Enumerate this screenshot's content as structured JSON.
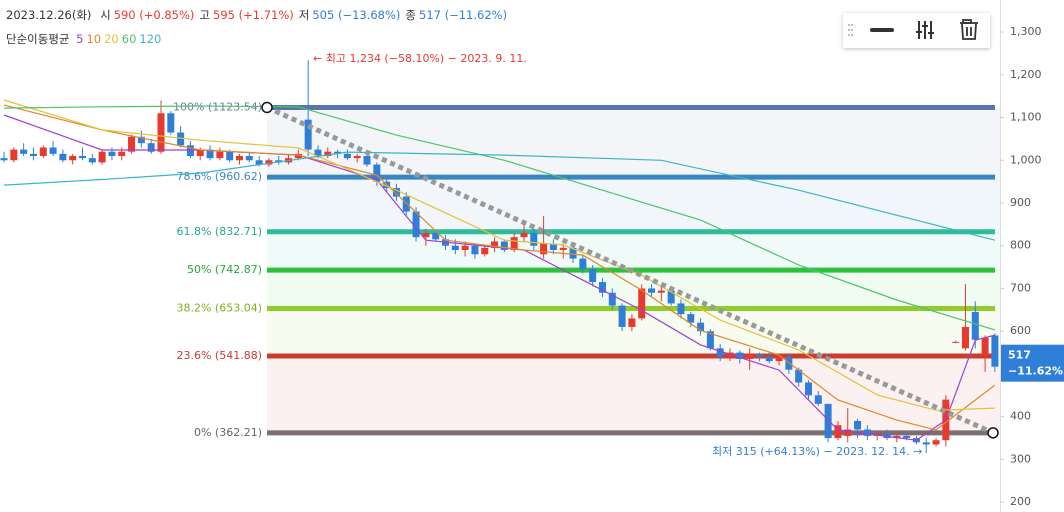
{
  "chart_data": {
    "type": "candlestick",
    "header": {
      "date": "2023.12.26(화)",
      "items": [
        {
          "label": "시",
          "value": "590 (+0.85%)",
          "color": "#e8392e"
        },
        {
          "label": "고",
          "value": "595 (+1.71%)",
          "color": "#e8392e"
        },
        {
          "label": "저",
          "value": "505 (−13.68%)",
          "color": "#2f7fd8"
        },
        {
          "label": "종",
          "value": "517 (−11.62%)",
          "color": "#2f7fd8"
        }
      ]
    },
    "legend_title": "단순이동평균",
    "up_color": "#e8392e",
    "down_color": "#2f7fd8",
    "xlim": [
      -0.41,
      101.52
    ],
    "ylim": [
      177,
      1375
    ],
    "yticks": [
      {
        "value": 1300,
        "label": "1,300"
      },
      {
        "value": 1200,
        "label": "1,200"
      },
      {
        "value": 1100,
        "label": "1,100"
      },
      {
        "value": 1000,
        "label": "1,000"
      },
      900,
      800,
      700,
      600,
      500,
      400,
      300,
      200
    ],
    "ohlc": [
      [
        1005,
        1020,
        995,
        1000
      ],
      [
        1000,
        1030,
        995,
        1025
      ],
      [
        1025,
        1040,
        1010,
        1015
      ],
      [
        1015,
        1030,
        1000,
        1010
      ],
      [
        1010,
        1035,
        1005,
        1030
      ],
      [
        1030,
        1045,
        1010,
        1015
      ],
      [
        1015,
        1025,
        995,
        1000
      ],
      [
        1000,
        1015,
        990,
        1010
      ],
      [
        1010,
        1030,
        1000,
        1005
      ],
      [
        1005,
        1015,
        990,
        995
      ],
      [
        995,
        1025,
        990,
        1020
      ],
      [
        1020,
        1030,
        1000,
        1010
      ],
      [
        1010,
        1030,
        1000,
        1020
      ],
      [
        1020,
        1060,
        1015,
        1055
      ],
      [
        1055,
        1070,
        1030,
        1040
      ],
      [
        1040,
        1050,
        1015,
        1020
      ],
      [
        1020,
        1140,
        1015,
        1110
      ],
      [
        1110,
        1115,
        1060,
        1065
      ],
      [
        1065,
        1080,
        1030,
        1035
      ],
      [
        1035,
        1045,
        1005,
        1010
      ],
      [
        1010,
        1030,
        1000,
        1025
      ],
      [
        1025,
        1035,
        1000,
        1005
      ],
      [
        1005,
        1030,
        1000,
        1020
      ],
      [
        1020,
        1025,
        995,
        1000
      ],
      [
        1000,
        1015,
        990,
        1010
      ],
      [
        1010,
        1020,
        995,
        1000
      ],
      [
        1000,
        1010,
        985,
        990
      ],
      [
        990,
        1005,
        985,
        1000
      ],
      [
        1000,
        1010,
        990,
        995
      ],
      [
        995,
        1015,
        990,
        1005
      ],
      [
        1005,
        1025,
        1000,
        1015
      ],
      [
        1095,
        1234,
        1010,
        1025
      ],
      [
        1025,
        1035,
        1005,
        1010
      ],
      [
        1010,
        1030,
        1005,
        1020
      ],
      [
        1020,
        1025,
        1005,
        1015
      ],
      [
        1015,
        1025,
        1000,
        1005
      ],
      [
        1005,
        1015,
        995,
        1010
      ],
      [
        1010,
        1015,
        985,
        990
      ],
      [
        990,
        995,
        940,
        950
      ],
      [
        950,
        960,
        925,
        935
      ],
      [
        935,
        945,
        905,
        915
      ],
      [
        915,
        925,
        870,
        880
      ],
      [
        880,
        890,
        810,
        820
      ],
      [
        820,
        840,
        800,
        830
      ],
      [
        830,
        835,
        810,
        815
      ],
      [
        815,
        825,
        790,
        800
      ],
      [
        800,
        815,
        780,
        790
      ],
      [
        790,
        810,
        775,
        800
      ],
      [
        800,
        805,
        770,
        780
      ],
      [
        780,
        800,
        775,
        795
      ],
      [
        795,
        820,
        785,
        810
      ],
      [
        810,
        815,
        785,
        790
      ],
      [
        790,
        830,
        785,
        820
      ],
      [
        820,
        850,
        810,
        830
      ],
      [
        830,
        840,
        790,
        800
      ],
      [
        780,
        870,
        770,
        805
      ],
      [
        805,
        815,
        780,
        790
      ],
      [
        790,
        805,
        770,
        795
      ],
      [
        795,
        800,
        760,
        770
      ],
      [
        770,
        780,
        735,
        745
      ],
      [
        745,
        755,
        705,
        715
      ],
      [
        715,
        725,
        680,
        690
      ],
      [
        690,
        700,
        650,
        660
      ],
      [
        660,
        665,
        600,
        610
      ],
      [
        610,
        640,
        600,
        630
      ],
      [
        630,
        710,
        625,
        700
      ],
      [
        700,
        710,
        680,
        690
      ],
      [
        690,
        705,
        670,
        695
      ],
      [
        695,
        700,
        660,
        665
      ],
      [
        665,
        675,
        630,
        640
      ],
      [
        640,
        645,
        610,
        620
      ],
      [
        620,
        630,
        590,
        600
      ],
      [
        600,
        605,
        555,
        560
      ],
      [
        560,
        570,
        530,
        540
      ],
      [
        540,
        560,
        530,
        550
      ],
      [
        550,
        555,
        525,
        535
      ],
      [
        535,
        560,
        510,
        545
      ],
      [
        545,
        550,
        530,
        540
      ],
      [
        540,
        550,
        525,
        530
      ],
      [
        530,
        545,
        520,
        540
      ],
      [
        540,
        545,
        500,
        510
      ],
      [
        510,
        515,
        470,
        480
      ],
      [
        480,
        485,
        440,
        450
      ],
      [
        450,
        460,
        425,
        430
      ],
      [
        430,
        430,
        340,
        350
      ],
      [
        350,
        390,
        345,
        380
      ],
      [
        355,
        420,
        340,
        370
      ],
      [
        390,
        395,
        350,
        370
      ],
      [
        370,
        380,
        345,
        355
      ],
      [
        355,
        365,
        345,
        360
      ],
      [
        360,
        370,
        345,
        350
      ],
      [
        350,
        360,
        340,
        355
      ],
      [
        355,
        360,
        345,
        350
      ],
      [
        350,
        355,
        335,
        340
      ],
      [
        340,
        350,
        315,
        335
      ],
      [
        335,
        350,
        330,
        345
      ],
      [
        345,
        450,
        330,
        440
      ],
      [
        575,
        578,
        572,
        575
      ],
      [
        560,
        710,
        555,
        610
      ],
      [
        645,
        670,
        560,
        580
      ],
      [
        545,
        590,
        505,
        585
      ],
      [
        590,
        595,
        505,
        517
      ]
    ],
    "series": [
      {
        "name": "5",
        "color": "#a040d0",
        "x": [
          0,
          10,
          20,
          30,
          38,
          43,
          53,
          61,
          65,
          71,
          79,
          85,
          93,
          96,
          99,
          101
        ],
        "values": [
          1106,
          1024,
          1024,
          1012,
          954,
          813,
          790,
          696,
          649,
          568,
          509,
          369,
          345,
          392,
          579,
          591
        ]
      },
      {
        "name": "10",
        "color": "#e0882a",
        "x": [
          0,
          10,
          20,
          30,
          38,
          45,
          53,
          59,
          65,
          71,
          79,
          85,
          91,
          95,
          101
        ],
        "values": [
          1129,
          1071,
          1024,
          1012,
          965,
          813,
          790,
          778,
          696,
          602,
          544,
          439,
          392,
          369,
          474
        ]
      },
      {
        "name": "20",
        "color": "#e5c13a",
        "x": [
          0,
          10,
          20,
          30,
          40,
          51,
          57,
          65,
          73,
          81,
          89,
          95,
          101
        ],
        "values": [
          1141,
          1071,
          1047,
          1029,
          930,
          813,
          802,
          731,
          626,
          556,
          451,
          415,
          420
        ]
      },
      {
        "name": "60",
        "color": "#4cc46a",
        "x": [
          0,
          10,
          20,
          30,
          40,
          51,
          61,
          71,
          81,
          91,
          101
        ],
        "values": [
          1122,
          1125,
          1127,
          1125,
          1059,
          1000,
          930,
          860,
          755,
          673,
          603
        ]
      },
      {
        "name": "120",
        "color": "#3ab5c8",
        "x": [
          0,
          10,
          20,
          35,
          51,
          67,
          81,
          101
        ],
        "values": [
          942,
          955,
          970,
          1019,
          1012,
          1000,
          930,
          813
        ]
      }
    ],
    "fib_levels": [
      {
        "label": "100% (1123.54)",
        "value": 1123.54,
        "color": "#5b76a6",
        "text_color": "#6d7e9c"
      },
      {
        "label": "78.6% (960.62)",
        "value": 960.62,
        "color": "#3a86c0",
        "text_color": "#3a86c0"
      },
      {
        "label": "61.8% (832.71)",
        "value": 832.71,
        "color": "#2dbb9a",
        "text_color": "#27a88a"
      },
      {
        "label": "50% (742.87)",
        "value": 742.87,
        "color": "#2cc23a",
        "text_color": "#28a834"
      },
      {
        "label": "38.2% (653.04)",
        "value": 653.04,
        "color": "#92cc2c",
        "text_color": "#7fb21e"
      },
      {
        "label": "23.6% (541.88)",
        "value": 541.88,
        "color": "#cc3b2e",
        "text_color": "#cc3b2e"
      },
      {
        "label": "0% (362.21)",
        "value": 362.21,
        "color": "#7b6e6e",
        "text_color": "#666"
      }
    ],
    "annotations": {
      "high": "← 최고 1,234 (−58.10%) − 2023. 9. 11.",
      "low": "최저 315 (+64.13%) − 2023. 12. 14. →"
    },
    "last_tag": {
      "value": 517,
      "change": "−11.62%",
      "color": "#2f7fd8"
    }
  }
}
